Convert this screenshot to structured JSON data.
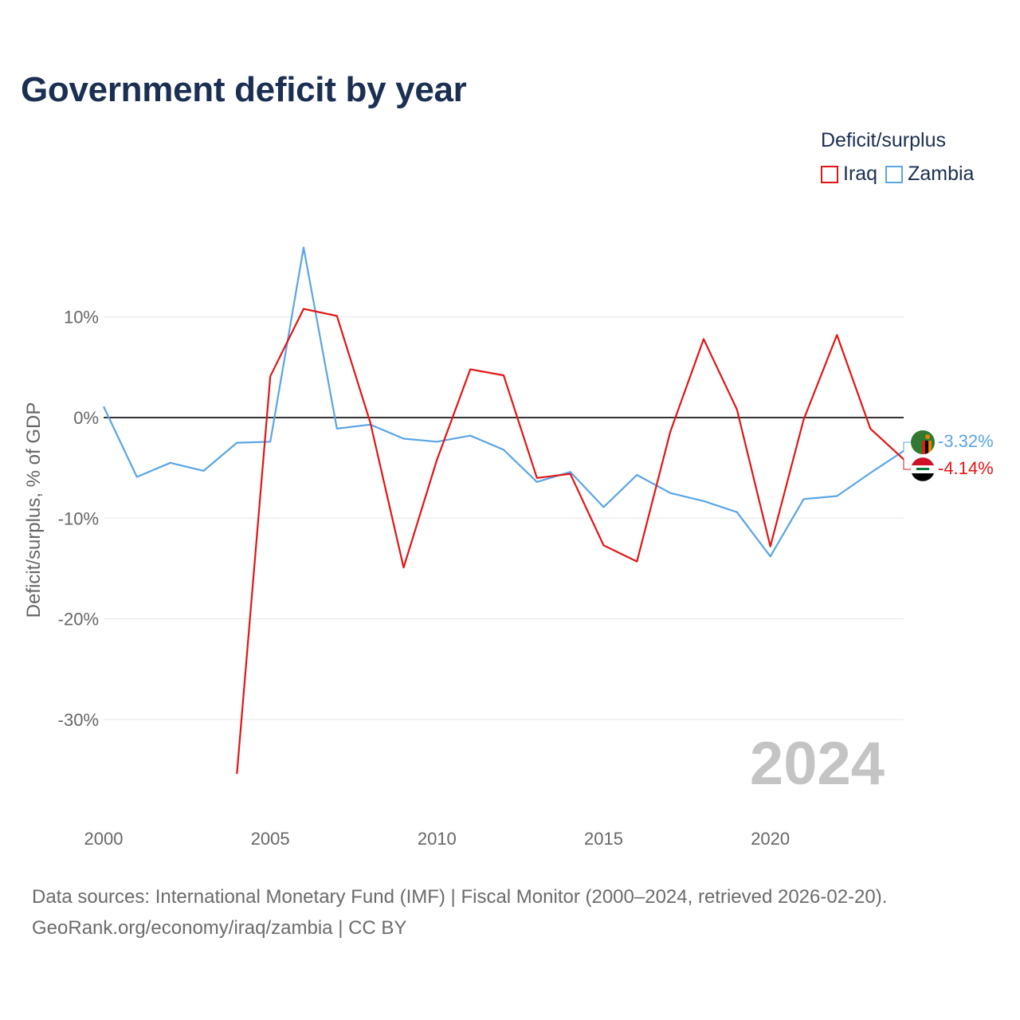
{
  "title": "Government deficit by year",
  "legend": {
    "title": "Deficit/surplus",
    "items": [
      {
        "name": "Iraq",
        "color": "#e31414"
      },
      {
        "name": "Zambia",
        "color": "#5aa5e6"
      }
    ]
  },
  "year_watermark": "2024",
  "end_labels": {
    "zambia": "-3.32%",
    "iraq": "-4.14%"
  },
  "footer": {
    "line1": "Data sources: International Monetary Fund (IMF) | Fiscal Monitor (2000–2024, retrieved 2026-02-20).",
    "line2": "GeoRank.org/economy/iraq/zambia | CC BY"
  },
  "chart_data": {
    "type": "line",
    "title": "Government deficit by year",
    "xlabel": "",
    "ylabel": "Deficit/surplus, % of GDP",
    "xlim": [
      2000,
      2024
    ],
    "ylim": [
      -38,
      18
    ],
    "x_ticks": [
      2000,
      2005,
      2010,
      2015,
      2020
    ],
    "x_tick_labels": [
      "2000",
      "2005",
      "2010",
      "2015",
      "2020"
    ],
    "y_ticks": [
      10,
      0,
      -10,
      -20,
      -30
    ],
    "y_tick_labels": [
      "10%",
      "0%",
      "-10%",
      "-20%",
      "-30%"
    ],
    "grid": true,
    "zero_line": true,
    "legend_position": "top-right",
    "series": [
      {
        "name": "Iraq",
        "color": "#e31414",
        "x": [
          2004,
          2005,
          2006,
          2007,
          2008,
          2009,
          2010,
          2011,
          2012,
          2013,
          2014,
          2015,
          2016,
          2017,
          2018,
          2019,
          2020,
          2021,
          2022,
          2023,
          2024
        ],
        "values": [
          -35.4,
          4.1,
          10.8,
          10.1,
          -0.5,
          -14.9,
          -4.2,
          4.8,
          4.2,
          -6.0,
          -5.6,
          -12.7,
          -14.3,
          -1.4,
          7.8,
          0.8,
          -12.8,
          -0.2,
          8.2,
          -1.1,
          -4.14
        ]
      },
      {
        "name": "Zambia",
        "color": "#5aa5e6",
        "x": [
          2000,
          2001,
          2002,
          2003,
          2004,
          2005,
          2006,
          2007,
          2008,
          2009,
          2010,
          2011,
          2012,
          2013,
          2014,
          2015,
          2016,
          2017,
          2018,
          2019,
          2020,
          2021,
          2022,
          2023,
          2024
        ],
        "values": [
          1.1,
          -5.9,
          -4.5,
          -5.3,
          -2.5,
          -2.4,
          16.9,
          -1.1,
          -0.7,
          -2.1,
          -2.4,
          -1.8,
          -3.2,
          -6.4,
          -5.4,
          -8.9,
          -5.7,
          -7.5,
          -8.3,
          -9.4,
          -13.8,
          -8.1,
          -7.8,
          -5.5,
          -3.32
        ]
      }
    ]
  }
}
